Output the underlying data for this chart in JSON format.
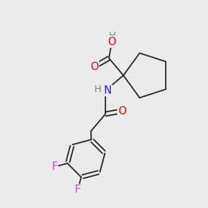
{
  "background_color": "#ebebeb",
  "bond_color": "#2a2a2a",
  "atom_colors": {
    "O": "#ff0000",
    "N": "#1a1aff",
    "F": "#cc44cc",
    "H": "#6a8a8a",
    "C": "#2a2a2a"
  },
  "figsize": [
    3.0,
    3.0
  ],
  "dpi": 100
}
